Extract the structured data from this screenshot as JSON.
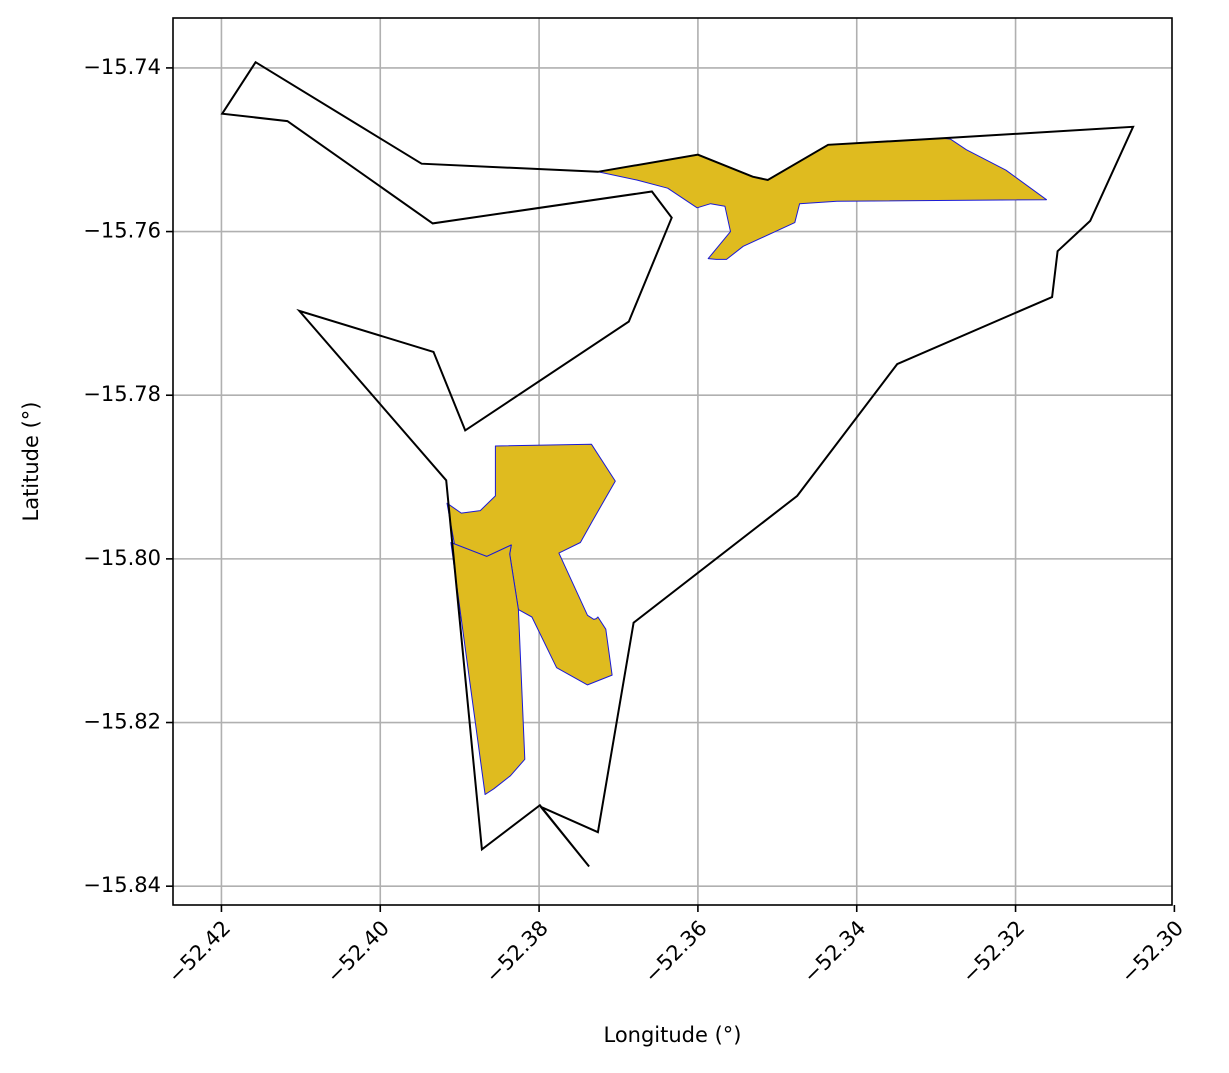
{
  "chart_data": {
    "type": "map",
    "xlabel": "Longitude (°)",
    "ylabel": "Latitude (°)",
    "xlim": [
      -52.4261,
      -52.3003
    ],
    "ylim": [
      -15.8423,
      -15.7339
    ],
    "grid": true,
    "xticks": [
      {
        "value": -52.42,
        "label": "−52.42"
      },
      {
        "value": -52.4,
        "label": "−52.40"
      },
      {
        "value": -52.38,
        "label": "−52.38"
      },
      {
        "value": -52.36,
        "label": "−52.36"
      },
      {
        "value": -52.34,
        "label": "−52.34"
      },
      {
        "value": -52.32,
        "label": "−52.32"
      },
      {
        "value": -52.3,
        "label": "−52.30"
      }
    ],
    "yticks": [
      {
        "value": -15.74,
        "label": "−15.74"
      },
      {
        "value": -15.76,
        "label": "−15.76"
      },
      {
        "value": -15.78,
        "label": "−15.78"
      },
      {
        "value": -15.8,
        "label": "−15.80"
      },
      {
        "value": -15.82,
        "label": "−15.82"
      },
      {
        "value": -15.84,
        "label": "−15.84"
      }
    ],
    "colors": {
      "boundary_edge": "#000000",
      "highlight_fill": "#dfbb1f",
      "highlight_edge": "#1a1ad6",
      "grid": "#b0b0b0"
    },
    "boundary": [
      [
        -52.4199,
        -15.7456
      ],
      [
        -52.4157,
        -15.7393
      ],
      [
        -52.3948,
        -15.7517
      ],
      [
        -52.3726,
        -15.7527
      ],
      [
        -52.36,
        -15.7506
      ],
      [
        -52.3531,
        -15.7533
      ],
      [
        -52.3512,
        -15.7537
      ],
      [
        -52.3436,
        -15.7494
      ],
      [
        -52.3292,
        -15.7486
      ],
      [
        -52.3052,
        -15.7472
      ],
      [
        -52.3106,
        -15.7587
      ],
      [
        -52.3147,
        -15.7624
      ],
      [
        -52.3154,
        -15.768
      ],
      [
        -52.3349,
        -15.7762
      ],
      [
        -52.3475,
        -15.7923
      ],
      [
        -52.3681,
        -15.8078
      ],
      [
        -52.3726,
        -15.8334
      ],
      [
        -52.3798,
        -15.8303
      ],
      [
        -52.3737,
        -15.8376
      ],
      [
        -52.3799,
        -15.8301
      ],
      [
        -52.3872,
        -15.8355
      ],
      [
        -52.3917,
        -15.7904
      ],
      [
        -52.4102,
        -15.7697
      ],
      [
        -52.3933,
        -15.7747
      ],
      [
        -52.3893,
        -15.7843
      ],
      [
        -52.3687,
        -15.771
      ],
      [
        -52.3633,
        -15.7583
      ],
      [
        -52.3658,
        -15.7551
      ],
      [
        -52.3934,
        -15.759
      ],
      [
        -52.4117,
        -15.7465
      ],
      [
        -52.4199,
        -15.7456
      ]
    ],
    "highlight_regions": [
      {
        "name": "",
        "points": [
          [
            -52.3726,
            -15.7527
          ],
          [
            -52.36,
            -15.7506
          ],
          [
            -52.3531,
            -15.7533
          ],
          [
            -52.3512,
            -15.7537
          ],
          [
            -52.3436,
            -15.7494
          ],
          [
            -52.3292,
            -15.7486
          ],
          [
            -52.3282,
            -15.7487
          ],
          [
            -52.3262,
            -15.75
          ],
          [
            -52.3212,
            -15.7525
          ],
          [
            -52.3161,
            -15.7561
          ],
          [
            -52.3425,
            -15.7563
          ],
          [
            -52.3472,
            -15.7566
          ],
          [
            -52.3478,
            -15.7589
          ],
          [
            -52.3543,
            -15.7618
          ],
          [
            -52.3564,
            -15.7634
          ],
          [
            -52.3577,
            -15.7634
          ],
          [
            -52.3587,
            -15.7633
          ],
          [
            -52.3559,
            -15.76
          ],
          [
            -52.3566,
            -15.7569
          ],
          [
            -52.3584,
            -15.7566
          ],
          [
            -52.3601,
            -15.7571
          ],
          [
            -52.3638,
            -15.7547
          ],
          [
            -52.3677,
            -15.7537
          ],
          [
            -52.3726,
            -15.7527
          ]
        ]
      },
      {
        "name": "",
        "points": [
          [
            -52.3855,
            -15.7862
          ],
          [
            -52.3734,
            -15.786
          ],
          [
            -52.3704,
            -15.7905
          ],
          [
            -52.3733,
            -15.7954
          ],
          [
            -52.3748,
            -15.798
          ],
          [
            -52.3775,
            -15.7993
          ],
          [
            -52.3739,
            -15.8069
          ],
          [
            -52.3731,
            -15.8074
          ],
          [
            -52.3728,
            -15.8073
          ],
          [
            -52.3726,
            -15.8071
          ],
          [
            -52.3716,
            -15.8086
          ],
          [
            -52.3708,
            -15.8142
          ],
          [
            -52.3739,
            -15.8154
          ],
          [
            -52.3778,
            -15.8133
          ],
          [
            -52.3809,
            -15.8071
          ],
          [
            -52.3826,
            -15.8062
          ],
          [
            -52.3837,
            -15.7994
          ],
          [
            -52.3835,
            -15.7983
          ],
          [
            -52.3866,
            -15.7997
          ],
          [
            -52.3906,
            -15.7985
          ],
          [
            -52.3916,
            -15.7932
          ],
          [
            -52.3898,
            -15.7944
          ],
          [
            -52.3874,
            -15.7941
          ],
          [
            -52.3855,
            -15.7923
          ],
          [
            -52.3855,
            -15.7862
          ]
        ]
      },
      {
        "name": "",
        "points": [
          [
            -52.3911,
            -15.798
          ],
          [
            -52.3868,
            -15.8288
          ],
          [
            -52.3857,
            -15.8281
          ],
          [
            -52.3836,
            -15.8265
          ],
          [
            -52.3818,
            -15.8245
          ],
          [
            -52.3826,
            -15.8062
          ],
          [
            -52.3837,
            -15.7994
          ],
          [
            -52.3835,
            -15.7983
          ],
          [
            -52.3866,
            -15.7997
          ],
          [
            -52.3911,
            -15.798
          ]
        ]
      }
    ]
  }
}
